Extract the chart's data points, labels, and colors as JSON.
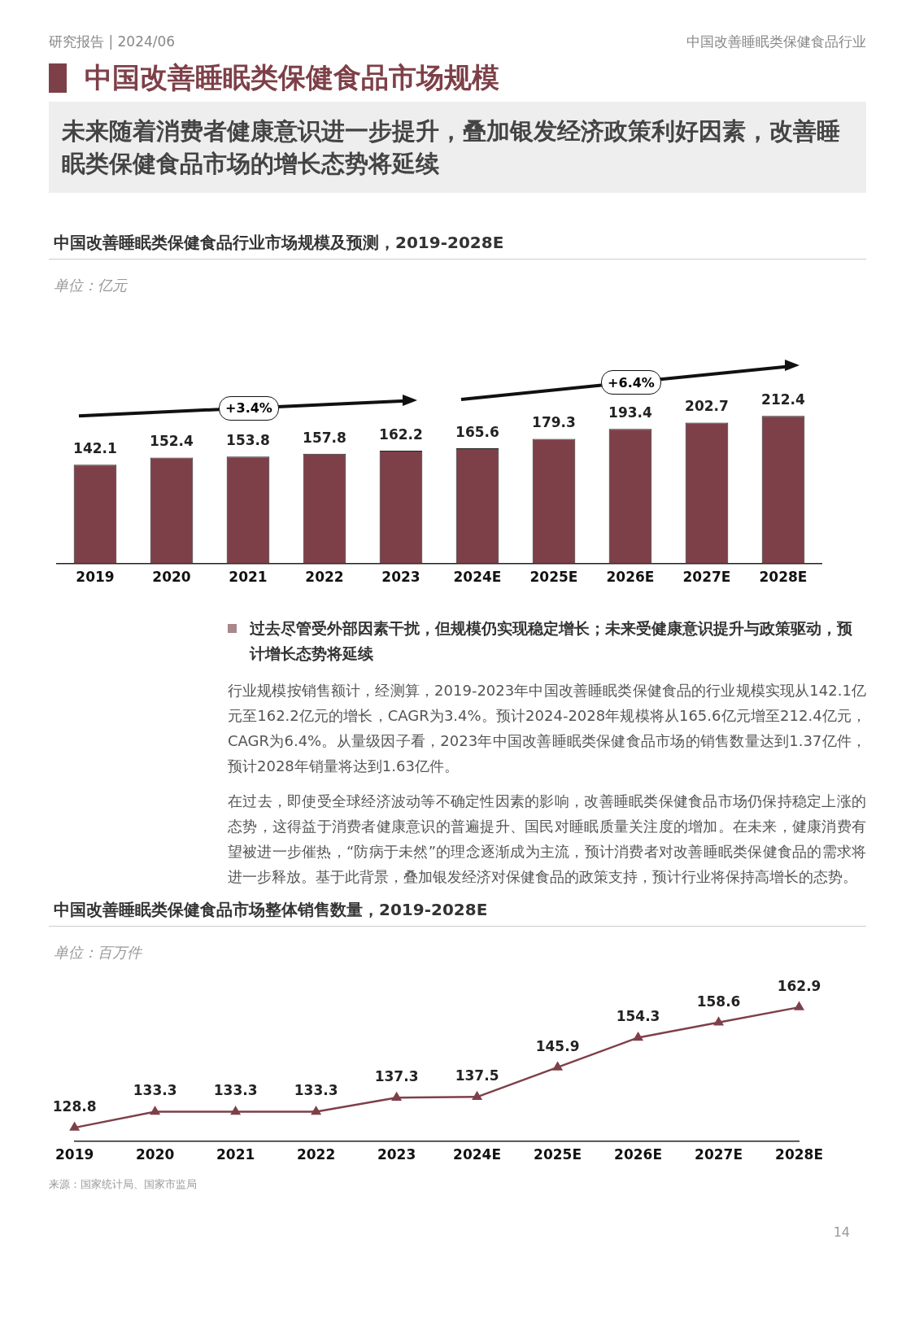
{
  "chart_data": [
    {
      "type": "bar",
      "title": "中国改善睡眠类保健食品行业市场规模及预测，2019-2028E",
      "categories": [
        "2019",
        "2020",
        "2021",
        "2022",
        "2023",
        "2024E",
        "2025E",
        "2026E",
        "2027E",
        "2028E"
      ],
      "values": [
        142.1,
        152.4,
        153.8,
        157.8,
        162.2,
        165.6,
        179.3,
        193.4,
        202.7,
        212.4
      ],
      "color": "#7e4048",
      "data_labels": true,
      "tick_labels": "x",
      "grid": false,
      "legend": false,
      "annotations": [
        "研究报告 | 2024/06",
        "中国改善睡眠类保健食品行业",
        "中国改善睡眠类保健食品市场规模",
        "未来随着消费者健康意识进一步提升，叠加银发经济政策利好因素，改善睡眠类保健食品市场的增长态势将延续",
        "单位：亿元",
        "+3.4%",
        "+6.4%",
        "过去尽管受外部因素干扰，但规模仍实现稳定增长；未来受健康意识提升与政策驱动，预计增长态势将延续",
        "行业规模按销售额计，经测算，2019-2023年中国改善睡眠类保健食品的行业规模实现从142.1亿元至162.2亿元的增长，CAGR为3.4%。预计2024-2028年规模将从165.6亿元增至212.4亿元，CAGR为6.4%。从量级因子看，2023年中国改善睡眠类保健食品市场的销售数量达到1.37亿件，预计2028年销量将达到1.63亿件。",
        "在过去，即使受全球经济波动等不确定性因素的影响，改善睡眠类保健食品市场仍保持稳定上涨的态势，这得益于消费者健康意识的普遍提升、国民对睡眠质量关注度的增加。在未来，健康消费有望被进一步催热，“防病于未然”的理念逐渐成为主流，预计消费者对改善睡眠类保健食品的需求将进一步释放。基于此背景，叠加银发经济对保健食品的政策支持，预计行业将保持高增长的态势。"
      ]
    },
    {
      "type": "line",
      "title": "中国改善睡眠类保健食品市场整体销售数量，2019-2028E",
      "categories": [
        "2019",
        "2020",
        "2021",
        "2022",
        "2023",
        "2024E",
        "2025E",
        "2026E",
        "2027E",
        "2028E"
      ],
      "values": [
        128.8,
        133.3,
        133.3,
        133.3,
        137.3,
        137.5,
        145.9,
        154.3,
        158.6,
        162.9
      ],
      "color": "#7e4048",
      "data_labels": true,
      "marker": "triangle",
      "line_style": "solid",
      "tick_labels": "x",
      "grid": false,
      "legend": false,
      "annotations": [
        "单位：百万件",
        "来源：国家统计局、国家市监局",
        "14"
      ]
    }
  ]
}
